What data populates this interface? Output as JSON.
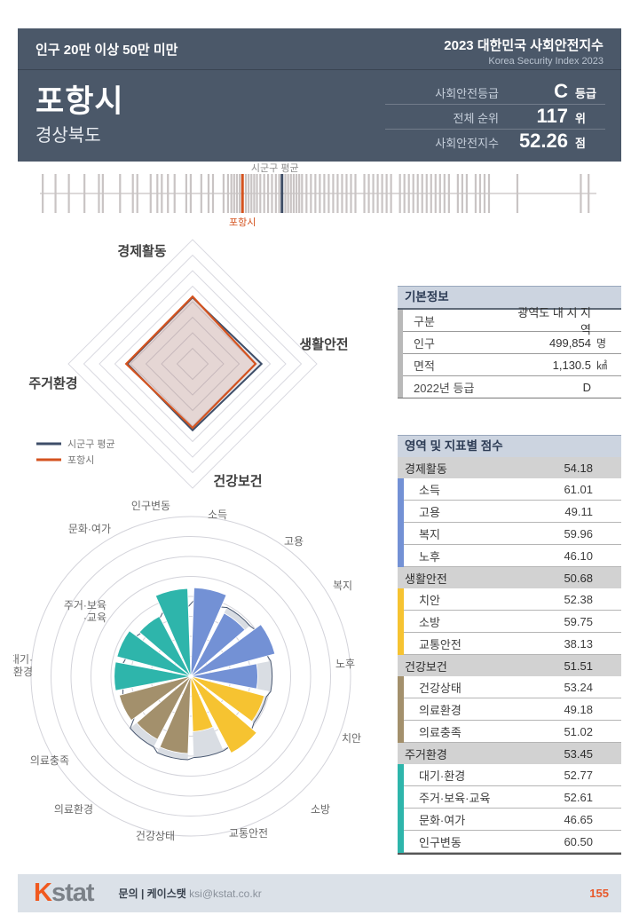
{
  "header": {
    "category": "인구 20만 이상 50만 미만",
    "title": "포항시",
    "region": "경상북도",
    "right_title": "2023 대한민국 사회안전지수",
    "right_subtitle": "Korea Security Index 2023",
    "stats": [
      {
        "label": "사회안전등급",
        "value": "C",
        "unit": "등급"
      },
      {
        "label": "전체 순위",
        "value": "117",
        "unit": "위"
      },
      {
        "label": "사회안전지수",
        "value": "52.26",
        "unit": "점"
      }
    ]
  },
  "chart_data": [
    {
      "type": "rug",
      "positions_pct": [
        0.5,
        2.8,
        5.2,
        8.0,
        10.6,
        11.3,
        14.4,
        16.7,
        17.5,
        19.9,
        21.1,
        21.9,
        23.0,
        24.2,
        26.3,
        27.1,
        29.0,
        30.3,
        31.1,
        33.0,
        33.8,
        34.4,
        34.9,
        35.4,
        35.9,
        37.0,
        37.5,
        38.0,
        38.5,
        39.0,
        39.6,
        40.3,
        41.0,
        41.7,
        42.4,
        43.0,
        44.1,
        44.6,
        45.1,
        45.6,
        46.1,
        46.6,
        47.1,
        47.9,
        48.7,
        49.5,
        50.3,
        51.1,
        51.9,
        52.7,
        53.5,
        54.3,
        55.1,
        55.9,
        56.7,
        58.3,
        59.1,
        59.9,
        60.7,
        61.5,
        62.3,
        63.1,
        64.7,
        65.5,
        66.3,
        67.1,
        67.9,
        68.7,
        69.5,
        70.3,
        71.1,
        71.9,
        72.7,
        73.5,
        75.1,
        75.9,
        76.7,
        78.3,
        79.1,
        79.9,
        80.7,
        85.8,
        97.2,
        98.6
      ],
      "markers": {
        "city": {
          "label": "포항시",
          "pos_pct": 36.4,
          "color": "#d4531f"
        },
        "average": {
          "label": "시군구 평균",
          "pos_pct": 43.5,
          "color": "#3e4d66"
        }
      }
    },
    {
      "type": "radar",
      "categories": [
        "경제활동",
        "생활안전",
        "건강보건",
        "주거환경"
      ],
      "max": 100,
      "rings": 8,
      "legend_position": "bottom-left",
      "series": [
        {
          "name": "시군구 평균",
          "color": "#3e4e69",
          "values": [
            53.5,
            55.5,
            53.5,
            52.5
          ]
        },
        {
          "name": "포항시",
          "color": "#d4531f",
          "values": [
            54.18,
            50.68,
            51.51,
            53.45
          ]
        }
      ]
    },
    {
      "type": "polar-bar",
      "categories": [
        "소득",
        "고용",
        "복지",
        "노후",
        "치안",
        "소방",
        "교통안전",
        "건강상태",
        "의료환경",
        "의료충족",
        "대기·\n환경",
        "주거·보육\n·교육",
        "문화·여가",
        "인구변동"
      ],
      "max": 110,
      "rings": 8,
      "bar_colors": [
        "#7391d5",
        "#7391d5",
        "#7391d5",
        "#7391d5",
        "#f6c331",
        "#f6c331",
        "#f6c331",
        "#a3906c",
        "#a3906c",
        "#a3906c",
        "#2eb5ab",
        "#2eb5ab",
        "#2eb5ab",
        "#2eb5ab"
      ],
      "series": [
        {
          "name": "시군구 평균",
          "render": "area",
          "color": "#d9dde3",
          "values": [
            52,
            53.5,
            54.5,
            56,
            54,
            55.5,
            56,
            57.5,
            55,
            48.5,
            47.5,
            46.5,
            45.5,
            48
          ]
        },
        {
          "name": "포항시",
          "render": "bar",
          "values": [
            61.01,
            49.11,
            59.96,
            46.1,
            52.38,
            59.75,
            38.13,
            53.24,
            49.18,
            51.02,
            52.77,
            52.61,
            46.65,
            60.5
          ]
        }
      ]
    }
  ],
  "basic_info": {
    "title": "기본정보",
    "rows": [
      {
        "label": "구분",
        "value": "광역도 내 시 지역",
        "unit": ""
      },
      {
        "label": "인구",
        "value": "499,854",
        "unit": "명"
      },
      {
        "label": "면적",
        "value": "1,130.5",
        "unit": "㎢"
      },
      {
        "label": "2022년 등급",
        "value": "D",
        "unit": ""
      }
    ]
  },
  "scores": {
    "title": "영역 및 지표별 점수",
    "sections": [
      {
        "name": "경제활동",
        "score": "54.18",
        "color": "#7391d5",
        "items": [
          {
            "label": "소득",
            "value": "61.01"
          },
          {
            "label": "고용",
            "value": "49.11"
          },
          {
            "label": "복지",
            "value": "59.96"
          },
          {
            "label": "노후",
            "value": "46.10"
          }
        ]
      },
      {
        "name": "생활안전",
        "score": "50.68",
        "color": "#f6c331",
        "items": [
          {
            "label": "치안",
            "value": "52.38"
          },
          {
            "label": "소방",
            "value": "59.75"
          },
          {
            "label": "교통안전",
            "value": "38.13"
          }
        ]
      },
      {
        "name": "건강보건",
        "score": "51.51",
        "color": "#a3906c",
        "items": [
          {
            "label": "건강상태",
            "value": "53.24"
          },
          {
            "label": "의료환경",
            "value": "49.18"
          },
          {
            "label": "의료충족",
            "value": "51.02"
          }
        ]
      },
      {
        "name": "주거환경",
        "score": "53.45",
        "color": "#2eb5ab",
        "items": [
          {
            "label": "대기·환경",
            "value": "52.77"
          },
          {
            "label": "주거·보육·교육",
            "value": "52.61"
          },
          {
            "label": "문화·여가",
            "value": "46.65"
          },
          {
            "label": "인구변동",
            "value": "60.50"
          }
        ]
      }
    ]
  },
  "footer": {
    "logo_k": "K",
    "logo_stat": "stat",
    "contact_label": "문의 | 케이스탯",
    "contact_email": "ksi@kstat.co.kr",
    "page": "155"
  },
  "colors": {
    "header_bg": "#4b5869",
    "accent_orange": "#d4531f",
    "navy": "#3e4d66",
    "blue": "#7391d5",
    "yellow": "#f6c331",
    "tan": "#a3906c",
    "teal": "#2eb5ab",
    "panel_head_bg": "#ccd4e0",
    "section_bg": "#d2d2d2",
    "footer_bg": "#dbe1e8",
    "page_number": "#e8582a"
  }
}
